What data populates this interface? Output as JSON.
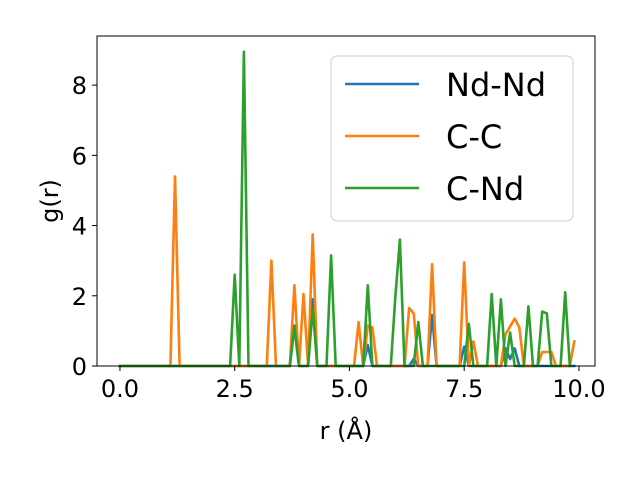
{
  "chart_data": {
    "type": "line",
    "xlabel": "r (Å)",
    "ylabel": "g(r)",
    "xlim": [
      -0.5,
      10.35
    ],
    "ylim": [
      0,
      9.4
    ],
    "xticks": [
      0.0,
      2.5,
      5.0,
      7.5,
      10.0
    ],
    "xtick_labels": [
      "0.0",
      "2.5",
      "5.0",
      "7.5",
      "10.0"
    ],
    "yticks": [
      0,
      2,
      4,
      6,
      8
    ],
    "ytick_labels": [
      "0",
      "2",
      "4",
      "6",
      "8"
    ],
    "grid": false,
    "legend_position": "upper right",
    "series": [
      {
        "name": "Nd-Nd",
        "color": "#1f77b4",
        "points": [
          [
            0,
            0
          ],
          [
            3.7,
            0
          ],
          [
            3.8,
            1.1
          ],
          [
            3.9,
            0
          ],
          [
            4.1,
            0
          ],
          [
            4.2,
            1.9
          ],
          [
            4.3,
            0
          ],
          [
            5.3,
            0
          ],
          [
            5.4,
            0.6
          ],
          [
            5.5,
            0
          ],
          [
            6.3,
            0
          ],
          [
            6.4,
            0.2
          ],
          [
            6.5,
            0
          ],
          [
            6.7,
            0
          ],
          [
            6.8,
            1.45
          ],
          [
            6.9,
            0
          ],
          [
            7.4,
            0
          ],
          [
            7.5,
            0.55
          ],
          [
            7.6,
            0
          ],
          [
            8.3,
            0
          ],
          [
            8.4,
            0.5
          ],
          [
            8.5,
            0.2
          ],
          [
            8.6,
            0.5
          ],
          [
            8.7,
            0
          ],
          [
            9.9,
            0
          ]
        ]
      },
      {
        "name": "C-C",
        "color": "#ff7f0e",
        "points": [
          [
            0,
            0
          ],
          [
            1.1,
            0
          ],
          [
            1.2,
            5.4
          ],
          [
            1.3,
            0
          ],
          [
            3.2,
            0
          ],
          [
            3.3,
            3.0
          ],
          [
            3.4,
            0
          ],
          [
            3.7,
            0
          ],
          [
            3.8,
            2.3
          ],
          [
            3.9,
            0
          ],
          [
            4.0,
            2.05
          ],
          [
            4.1,
            0
          ],
          [
            4.2,
            3.75
          ],
          [
            4.3,
            0
          ],
          [
            5.1,
            0
          ],
          [
            5.2,
            1.25
          ],
          [
            5.3,
            0
          ],
          [
            5.4,
            1.15
          ],
          [
            5.5,
            1.1
          ],
          [
            5.6,
            0
          ],
          [
            6.2,
            0
          ],
          [
            6.3,
            1.65
          ],
          [
            6.4,
            1.5
          ],
          [
            6.5,
            0
          ],
          [
            6.7,
            0
          ],
          [
            6.8,
            2.9
          ],
          [
            6.9,
            0
          ],
          [
            7.4,
            0
          ],
          [
            7.5,
            2.95
          ],
          [
            7.6,
            0
          ],
          [
            7.7,
            0.7
          ],
          [
            7.8,
            0
          ],
          [
            8.3,
            0
          ],
          [
            8.4,
            0.9
          ],
          [
            8.6,
            1.35
          ],
          [
            8.7,
            1.1
          ],
          [
            8.8,
            0
          ],
          [
            9.1,
            0
          ],
          [
            9.2,
            0.4
          ],
          [
            9.4,
            0.4
          ],
          [
            9.5,
            0
          ],
          [
            9.8,
            0
          ],
          [
            9.9,
            0.7
          ]
        ]
      },
      {
        "name": "C-Nd",
        "color": "#2ca02c",
        "points": [
          [
            0,
            0
          ],
          [
            2.4,
            0
          ],
          [
            2.5,
            2.6
          ],
          [
            2.6,
            0
          ],
          [
            2.7,
            8.95
          ],
          [
            2.8,
            0
          ],
          [
            3.7,
            0
          ],
          [
            3.8,
            1.15
          ],
          [
            3.9,
            0
          ],
          [
            4.1,
            0
          ],
          [
            4.2,
            1.65
          ],
          [
            4.3,
            0
          ],
          [
            4.5,
            0
          ],
          [
            4.6,
            3.15
          ],
          [
            4.7,
            0
          ],
          [
            5.3,
            0
          ],
          [
            5.4,
            2.3
          ],
          [
            5.5,
            0
          ],
          [
            5.9,
            0
          ],
          [
            6.0,
            1.95
          ],
          [
            6.1,
            3.6
          ],
          [
            6.2,
            0
          ],
          [
            6.4,
            0
          ],
          [
            6.5,
            1.25
          ],
          [
            6.6,
            0
          ],
          [
            7.5,
            0
          ],
          [
            7.6,
            1.2
          ],
          [
            7.7,
            0
          ],
          [
            8.0,
            0
          ],
          [
            8.1,
            2.05
          ],
          [
            8.2,
            0
          ],
          [
            8.3,
            1.9
          ],
          [
            8.4,
            0
          ],
          [
            8.5,
            0.95
          ],
          [
            8.6,
            0
          ],
          [
            8.8,
            0
          ],
          [
            8.9,
            1.7
          ],
          [
            9.0,
            0
          ],
          [
            9.1,
            0
          ],
          [
            9.2,
            1.55
          ],
          [
            9.3,
            1.5
          ],
          [
            9.4,
            0
          ],
          [
            9.6,
            0
          ],
          [
            9.7,
            2.1
          ],
          [
            9.8,
            0
          ]
        ]
      }
    ]
  }
}
